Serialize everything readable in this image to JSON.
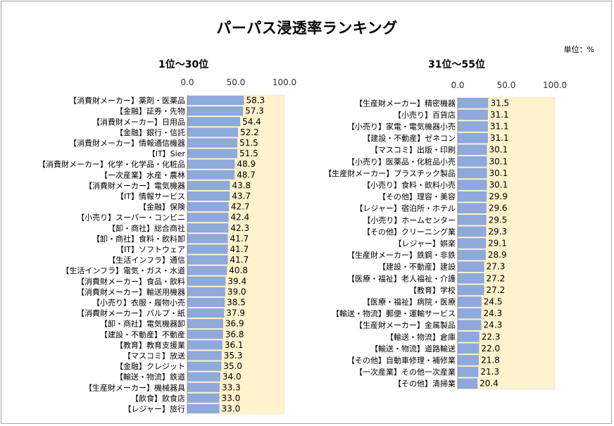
{
  "title": "パーパス浸透率ランキング",
  "unit_label": "単位：%",
  "colors": {
    "bar": "#8ea9db",
    "track": "#fff2cc",
    "track_border": "#d9d9d9"
  },
  "chart_data": [
    {
      "type": "bar",
      "orientation": "horizontal",
      "title": "1位～30位",
      "xlim": [
        0,
        100
      ],
      "ticks": [
        "0.0",
        "50.0",
        "100.0"
      ],
      "categories": [
        "【消費財メーカー】薬剤・医薬品",
        "【金融】証券・先物",
        "【消費財メーカー】日用品",
        "【金融】銀行・信託",
        "【消費財メーカー】情報通信機器",
        "【IT】Sier",
        "【消費財メーカー】化学・化学品・化粧品",
        "【一次産業】水産・農林",
        "【消費財メーカー】電気機器",
        "【IT】情報サービス",
        "【金融】保険",
        "【小売り】スーパー・コンビニ",
        "【卸・商社】総合商社",
        "【卸・商社】食料・飲料卸",
        "【IT】ソフトウェア",
        "【生活インフラ】通信",
        "【生活インフラ】電気・ガス・水道",
        "【消費財メーカー】食品・飲料",
        "【消費財メーカー】輸送用機器",
        "【小売り】衣服・履物小売",
        "【消費財メーカー】パルプ・紙",
        "【卸・商社】電気機器卸",
        "【建設・不動産】不動産",
        "【教育】教育支援業",
        "【マスコミ】放送",
        "【金融】クレジット",
        "【輸送・物流】鉄道",
        "【生産財メーカー】機械器具",
        "【飲食】飲食店",
        "【レジャー】旅行"
      ],
      "values": [
        58.3,
        57.3,
        54.4,
        52.2,
        51.5,
        51.5,
        48.9,
        48.7,
        43.8,
        43.7,
        42.7,
        42.4,
        42.3,
        41.7,
        41.7,
        41.7,
        40.8,
        39.4,
        39.0,
        38.5,
        37.9,
        36.9,
        36.8,
        36.1,
        35.3,
        35.0,
        34.0,
        33.3,
        33.0,
        33.0
      ],
      "labels": [
        "58.3",
        "57.3",
        "54.4",
        "52.2",
        "51.5",
        "51.5",
        "48.9",
        "48.7",
        "43.8",
        "43.7",
        "42.7",
        "42.4",
        "42.3",
        "41.7",
        "41.7",
        "41.7",
        "40.8",
        "39.4",
        "39.0",
        "38.5",
        "37.9",
        "36.9",
        "36.8",
        "36.1",
        "35.3",
        "35.0",
        "34.0",
        "33.3",
        "33.0",
        "33.0"
      ]
    },
    {
      "type": "bar",
      "orientation": "horizontal",
      "title": "31位～55位",
      "xlim": [
        0,
        100
      ],
      "ticks": [
        "0.0",
        "50.0",
        "100.0"
      ],
      "categories": [
        "【生産財メーカー】精密機器",
        "【小売り】百貨店",
        "【小売り】家電・電気機器小売",
        "【建設・不動産】ゼネコン",
        "【マスコミ】出版・印刷",
        "【小売り】医薬品・化粧品小売",
        "【生産財メーカー】プラスチック製品",
        "【小売り】食料・飲料小売",
        "【その他】理容・美容",
        "【レジャー】宿泊所・ホテル",
        "【小売り】ホームセンター",
        "【その他】クリーニング業",
        "【レジャー】娯楽",
        "【生産財メーカー】鉄鋼・非鉄",
        "【建設・不動産】建設",
        "【医療・福祉】老人福祉・介護",
        "【教育】学校",
        "【医療・福祉】病院・医療",
        "【輸送・物流】郵便・運輸サービス",
        "【生産財メーカー】金属製品",
        "【輸送・物流】倉庫",
        "【輸送・物流】道路輸送",
        "【その他】自動車修理・補修業",
        "【一次産業】その他一次産業",
        "【その他】清掃業"
      ],
      "values": [
        31.5,
        31.1,
        31.1,
        31.1,
        30.1,
        30.1,
        30.1,
        30.1,
        29.9,
        29.6,
        29.5,
        29.3,
        29.1,
        28.9,
        27.3,
        27.2,
        27.2,
        24.5,
        24.3,
        24.3,
        22.3,
        22.0,
        21.8,
        21.3,
        20.4
      ],
      "labels": [
        "31.5",
        "31.1",
        "31.1",
        "31.1",
        "30.1",
        "30.1",
        "30.1",
        "30.1",
        "29.9",
        "29.6",
        "29.5",
        "29.3",
        "29.1",
        "28.9",
        "27.3",
        "27.2",
        "27.2",
        "24.5",
        "24.3",
        "24.3",
        "22.3",
        "22.0",
        "21.8",
        "21.3",
        "20.4"
      ]
    }
  ]
}
